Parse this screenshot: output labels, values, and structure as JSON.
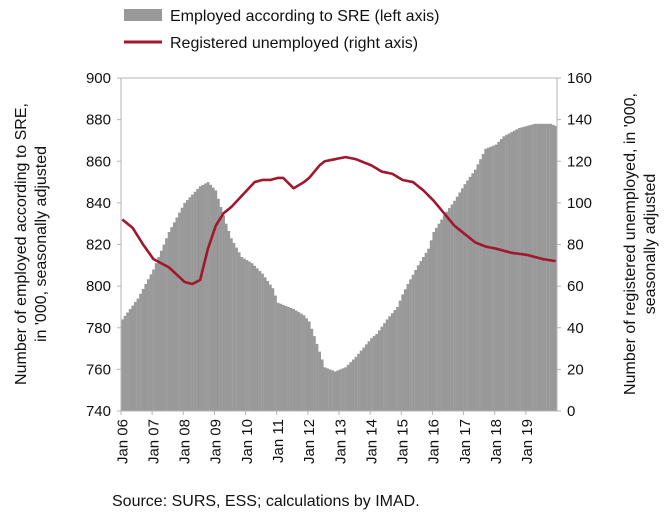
{
  "chart_data": {
    "type": "bar+line",
    "title": "",
    "source": "Source: SURS, ESS; calculations by IMAD.",
    "legend": {
      "placement": "top",
      "employed": "Employed according to SRE (left axis)",
      "unemployed": "Registered unemployed (right axis)"
    },
    "left_axis": {
      "label_line1": "Number of employed according to SRE,",
      "label_line2": "in '000, seasonally adjusted",
      "ylim": [
        740,
        900
      ],
      "ticks": [
        "740",
        "760",
        "780",
        "800",
        "820",
        "840",
        "860",
        "880",
        "900"
      ]
    },
    "right_axis": {
      "label_line1": "Number of registered unemployed, in '000,",
      "label_line2": "seasonally adjusted",
      "ylim": [
        0,
        160
      ],
      "ticks": [
        "0",
        "20",
        "40",
        "60",
        "80",
        "100",
        "120",
        "140",
        "160"
      ]
    },
    "x_axis": {
      "start": "Jan 06",
      "months": 168,
      "tick_labels": [
        "Jan 06",
        "Jan 07",
        "Jan 08",
        "Jan 09",
        "Jan 10",
        "Jan 11",
        "Jan 12",
        "Jan 13",
        "Jan 14",
        "Jan 15",
        "Jan 16",
        "Jan 17",
        "Jan 18",
        "Jan 19"
      ]
    },
    "series": [
      {
        "name": "Employed according to SRE (left axis)",
        "kind": "bar",
        "axis": "left",
        "color": "#999999",
        "knots_month": [
          0,
          6,
          12,
          18,
          24,
          30,
          33,
          36,
          38,
          40,
          42,
          46,
          50,
          54,
          58,
          60,
          62,
          66,
          70,
          72,
          74,
          78,
          82,
          84,
          86,
          90,
          94,
          96,
          98,
          102,
          106,
          108,
          110,
          114,
          118,
          120,
          124,
          128,
          132,
          136,
          140,
          144,
          147,
          150,
          153,
          156,
          159,
          162,
          165,
          167
        ],
        "knots_value": [
          784,
          794,
          808,
          826,
          840,
          848,
          850,
          846,
          838,
          830,
          823,
          814,
          811,
          806,
          799,
          792,
          791,
          789,
          786,
          783,
          776,
          761,
          759,
          760,
          761,
          766,
          772,
          775,
          777,
          784,
          790,
          796,
          801,
          810,
          818,
          826,
          834,
          841,
          849,
          856,
          866,
          868,
          872,
          874,
          876,
          877,
          878,
          878,
          878,
          877
        ]
      },
      {
        "name": "Registered unemployed (right axis)",
        "kind": "line",
        "axis": "right",
        "color": "#a0172e",
        "knots_month": [
          0,
          4,
          8,
          12,
          18,
          24,
          27,
          30,
          33,
          36,
          39,
          42,
          45,
          48,
          51,
          54,
          57,
          60,
          62,
          66,
          70,
          72,
          76,
          78,
          82,
          86,
          90,
          94,
          96,
          100,
          104,
          108,
          112,
          116,
          120,
          124,
          128,
          132,
          136,
          140,
          144,
          150,
          156,
          162,
          167
        ],
        "knots_value": [
          92,
          88,
          80,
          73,
          69,
          62,
          61,
          63,
          78,
          89,
          95,
          98,
          102,
          106,
          110,
          111,
          111,
          112,
          112,
          107,
          110,
          112,
          118,
          120,
          121,
          122,
          121,
          119,
          118,
          115,
          114,
          111,
          110,
          106,
          101,
          95,
          89,
          85,
          81,
          79,
          78,
          76,
          75,
          73,
          72
        ]
      }
    ]
  }
}
